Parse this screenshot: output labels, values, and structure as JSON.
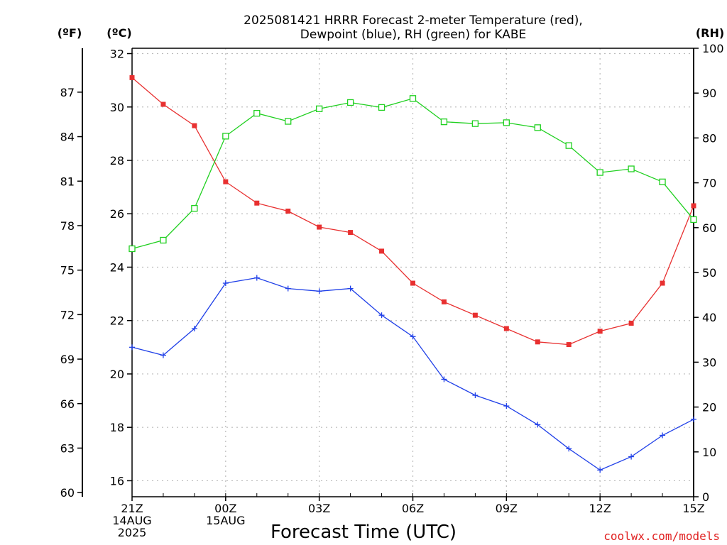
{
  "chart_data": {
    "type": "line",
    "title_line1": "2025081421 HRRR Forecast 2-meter Temperature (red),",
    "title_line2": "Dewpoint (blue), RH (green) for KABE",
    "xlabel": "Forecast Time (UTC)",
    "credit": "coolwx.com/models",
    "unit_f": "(ºF)",
    "unit_c": "(ºC)",
    "unit_rh": "(RH)",
    "x_tick_labels": [
      {
        "hour": 0,
        "lines": [
          "21Z",
          "14AUG",
          "2025"
        ]
      },
      {
        "hour": 3,
        "lines": [
          "00Z",
          "15AUG"
        ]
      },
      {
        "hour": 6,
        "lines": [
          "03Z"
        ]
      },
      {
        "hour": 9,
        "lines": [
          "06Z"
        ]
      },
      {
        "hour": 12,
        "lines": [
          "09Z"
        ]
      },
      {
        "hour": 15,
        "lines": [
          "12Z"
        ]
      },
      {
        "hour": 18,
        "lines": [
          "15Z"
        ]
      }
    ],
    "c_ticks": [
      "16",
      "18",
      "20",
      "22",
      "24",
      "26",
      "28",
      "30",
      "32"
    ],
    "f_ticks": [
      "60",
      "63",
      "66",
      "69",
      "72",
      "75",
      "78",
      "81",
      "84",
      "87"
    ],
    "rh_ticks": [
      "0",
      "10",
      "20",
      "30",
      "40",
      "50",
      "60",
      "70",
      "80",
      "90",
      "100"
    ],
    "ylim_c": [
      15.4,
      32.2
    ],
    "ylim_rh": [
      0,
      100
    ],
    "grid": true,
    "x": [
      0,
      1,
      2,
      3,
      4,
      5,
      6,
      7,
      8,
      9,
      10,
      11,
      12,
      13,
      14,
      15,
      16,
      17,
      18
    ],
    "series": [
      {
        "key": "temperature",
        "color": "#e83030",
        "marker": "filled-square",
        "axis": "c",
        "values": [
          31.1,
          30.1,
          29.3,
          27.2,
          26.4,
          26.1,
          25.5,
          25.3,
          24.6,
          23.4,
          22.7,
          22.2,
          21.7,
          21.2,
          21.1,
          21.6,
          21.9,
          23.4,
          26.3
        ]
      },
      {
        "key": "dewpoint",
        "color": "#2040e8",
        "marker": "plus",
        "axis": "c",
        "values": [
          21.0,
          20.7,
          21.7,
          23.4,
          23.6,
          23.2,
          23.1,
          23.2,
          22.2,
          21.4,
          19.8,
          19.2,
          18.8,
          18.1,
          17.2,
          16.4,
          16.9,
          17.7,
          18.3
        ]
      },
      {
        "key": "rh",
        "color": "#20d020",
        "marker": "open-square",
        "axis": "rh",
        "values": [
          55.3,
          57.2,
          64.3,
          80.4,
          85.5,
          83.7,
          86.5,
          87.9,
          86.8,
          88.8,
          83.6,
          83.2,
          83.4,
          82.3,
          78.3,
          72.3,
          73.1,
          70.2,
          61.8
        ]
      }
    ]
  }
}
